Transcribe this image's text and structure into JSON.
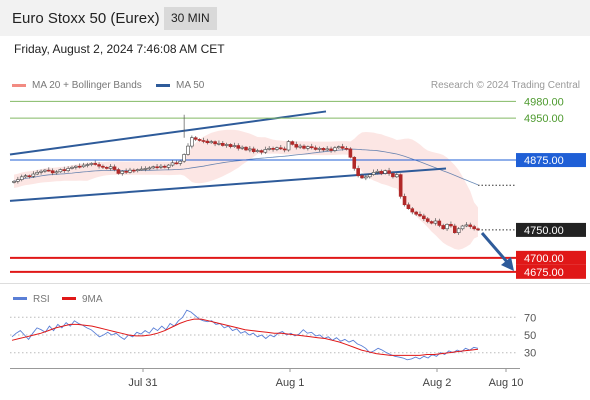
{
  "header": {
    "title": "Euro Stoxx 50 (Eurex)",
    "interval": "30 MIN",
    "datetime": "Friday, August 2, 2024 7:46:08 AM CET",
    "credit": "Research © 2024 Trading Central"
  },
  "colors": {
    "bollinger": "#f28b82",
    "ma50": "#2e5b9a",
    "green_level": "#82b965",
    "blue_level": "#1f5fd6",
    "red_level": "#e01818",
    "last_price": "#222222",
    "rsi": "#5a7fd6",
    "rsi_ma": "#e01818",
    "candle_up": "#ffffff",
    "candle_down": "#b02828"
  },
  "chart_data": [
    {
      "type": "candlestick",
      "legend": [
        {
          "name": "MA 20 + Bollinger Bands",
          "color": "#f28b82"
        },
        {
          "name": "MA 50",
          "color": "#2e5b9a"
        }
      ],
      "ylim": [
        4655,
        4995
      ],
      "x_ticks": [
        "Jul 31",
        "Aug 1",
        "Aug 2",
        "Aug 10"
      ],
      "levels": [
        {
          "value": 4980,
          "label": "4980.00",
          "style": "green"
        },
        {
          "value": 4950,
          "label": "4950.00",
          "style": "green"
        },
        {
          "value": 4875,
          "label": "4875.00",
          "style": "blue"
        },
        {
          "value": 4750,
          "label": "4750.00",
          "style": "last"
        },
        {
          "value": 4700,
          "label": "4700.00",
          "style": "red"
        },
        {
          "value": 4675,
          "label": "4675.00",
          "style": "red"
        }
      ],
      "closes": [
        4837,
        4840,
        4845,
        4847,
        4846,
        4850,
        4853,
        4855,
        4857,
        4856,
        4852,
        4854,
        4858,
        4856,
        4860,
        4862,
        4864,
        4863,
        4866,
        4867,
        4869,
        4867,
        4864,
        4862,
        4860,
        4863,
        4858,
        4851,
        4855,
        4853,
        4857,
        4856,
        4858,
        4859,
        4860,
        4861,
        4863,
        4862,
        4864,
        4862,
        4866,
        4870,
        4869,
        4873,
        4885,
        4900,
        4915,
        4912,
        4910,
        4909,
        4906,
        4908,
        4904,
        4905,
        4901,
        4903,
        4899,
        4901,
        4896,
        4898,
        4893,
        4895,
        4890,
        4892,
        4889,
        4894,
        4896,
        4894,
        4897,
        4895,
        4893,
        4908,
        4903,
        4898,
        4900,
        4896,
        4899,
        4897,
        4894,
        4896,
        4893,
        4895,
        4892,
        4897,
        4899,
        4896,
        4895,
        4880,
        4860,
        4847,
        4843,
        4845,
        4849,
        4853,
        4855,
        4851,
        4856,
        4851,
        4845,
        4849,
        4810,
        4795,
        4788,
        4782,
        4778,
        4775,
        4770,
        4765,
        4762,
        4766,
        4758,
        4752,
        4760,
        4757,
        4745,
        4752,
        4757,
        4759,
        4756,
        4752,
        4750
      ],
      "rsi": {
        "ylim": [
          15,
          85
        ],
        "ticks": [
          70,
          50,
          30
        ],
        "rsi_values": [
          48,
          52,
          55,
          50,
          45,
          52,
          58,
          56,
          53,
          60,
          55,
          62,
          58,
          64,
          60,
          66,
          63,
          61,
          58,
          56,
          52,
          48,
          50,
          53,
          50,
          52,
          48,
          45,
          50,
          48,
          53,
          51,
          55,
          52,
          58,
          55,
          60,
          56,
          63,
          60,
          66,
          70,
          78,
          76,
          72,
          68,
          66,
          65,
          66,
          62,
          63,
          58,
          60,
          55,
          57,
          52,
          54,
          50,
          52,
          48,
          50,
          46,
          50,
          48,
          52,
          54,
          50,
          52,
          49,
          51,
          56,
          52,
          53,
          49,
          50,
          46,
          48,
          44,
          47,
          43,
          45,
          42,
          44,
          40,
          38,
          35,
          30,
          32,
          35,
          33,
          30,
          28,
          26,
          25,
          24,
          22,
          23,
          25,
          23,
          26,
          24,
          28,
          26,
          30,
          28,
          32,
          30,
          33,
          31,
          35,
          33,
          36,
          35
        ],
        "ma_values": [
          44,
          46,
          48,
          50,
          52,
          55,
          58,
          60,
          62,
          62,
          61,
          60,
          58,
          56,
          54,
          52,
          50,
          49,
          49,
          50,
          52,
          55,
          59,
          63,
          66,
          68,
          68,
          66,
          64,
          62,
          60,
          58,
          56,
          55,
          54,
          53,
          52,
          52,
          51,
          50,
          49,
          48,
          47,
          46,
          44,
          42,
          39,
          36,
          33,
          31,
          29,
          28,
          27,
          27,
          27,
          27,
          27,
          28,
          28,
          29,
          30,
          31,
          32,
          33,
          34
        ]
      }
    }
  ]
}
